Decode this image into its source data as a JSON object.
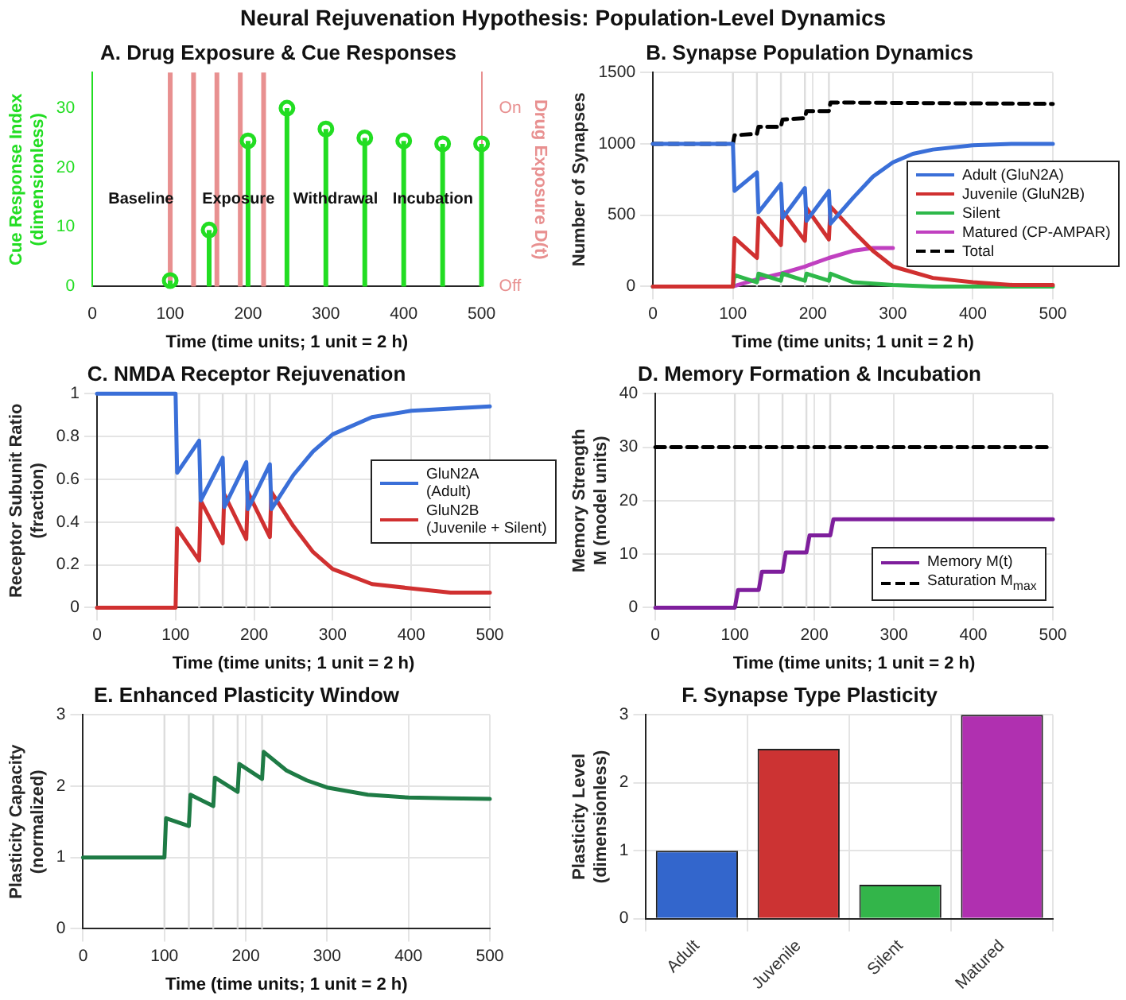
{
  "chart_data": [
    {
      "type": "lollipop",
      "title": "Neural Rejuvenation Hypothesis: Population-Level Dynamics",
      "subtitle": "A. Drug Exposure & Cue Responses",
      "xlabel": "Time (time units; 1 unit = 2 h)",
      "ylabel": "Cue Response Index\n(dimensionless)",
      "y2label": "Drug Exposure D(t)",
      "xlim": [
        0,
        500
      ],
      "xticks": [
        0,
        100,
        200,
        300,
        400,
        500
      ],
      "ylim": [
        0,
        36
      ],
      "yticks": [
        0,
        10,
        20,
        30
      ],
      "y2_categories": [
        "On",
        "Off"
      ],
      "marker": "circle",
      "annotations": [
        "Baseline",
        "Exposure",
        "Withdrawal",
        "Incubation"
      ],
      "ref_lines": [
        {
          "axis": "x",
          "value": 100,
          "color": "#e89090"
        },
        {
          "axis": "x",
          "value": 130,
          "color": "#e89090"
        },
        {
          "axis": "x",
          "value": 160,
          "color": "#e89090"
        },
        {
          "axis": "x",
          "value": 190,
          "color": "#e89090"
        },
        {
          "axis": "x",
          "value": 220,
          "color": "#e89090"
        }
      ],
      "series": [
        {
          "color": "#22dd22",
          "x": [
            100,
            150,
            200,
            250,
            300,
            350,
            400,
            450,
            500
          ],
          "values": [
            1,
            9.5,
            24.5,
            30,
            26.5,
            25,
            24.5,
            24,
            24
          ]
        }
      ]
    },
    {
      "type": "line",
      "title": "B. Synapse Population Dynamics",
      "xlabel": "Time (time units; 1 unit = 2 h)",
      "ylabel": "Number of Synapses",
      "xlim": [
        0,
        500
      ],
      "xticks": [
        0,
        100,
        200,
        300,
        400,
        500
      ],
      "ylim": [
        0,
        1500
      ],
      "yticks": [
        0,
        500,
        1000,
        1500
      ],
      "grid": true,
      "legend": "right",
      "ref_lines": [
        {
          "axis": "x",
          "value": 100,
          "color": "#dddddd"
        },
        {
          "axis": "x",
          "value": 130,
          "color": "#dddddd"
        },
        {
          "axis": "x",
          "value": 160,
          "color": "#dddddd"
        },
        {
          "axis": "x",
          "value": 190,
          "color": "#dddddd"
        },
        {
          "axis": "x",
          "value": 220,
          "color": "#dddddd"
        }
      ],
      "series": [
        {
          "name": "Adult (GluN2A)",
          "color": "#3a6fd8",
          "x": [
            0,
            100,
            102,
            130,
            132,
            160,
            162,
            190,
            192,
            220,
            222,
            250,
            275,
            300,
            325,
            350,
            400,
            450,
            500
          ],
          "values": [
            1000,
            1000,
            670,
            800,
            520,
            720,
            480,
            690,
            460,
            670,
            440,
            620,
            770,
            870,
            930,
            960,
            990,
            1000,
            1000
          ]
        },
        {
          "name": "Juvenile (GluN2B)",
          "color": "#d03030",
          "x": [
            0,
            100,
            102,
            130,
            132,
            160,
            162,
            190,
            192,
            220,
            222,
            250,
            275,
            300,
            350,
            400,
            450,
            500
          ],
          "values": [
            0,
            0,
            340,
            200,
            480,
            290,
            530,
            320,
            550,
            330,
            560,
            390,
            250,
            140,
            60,
            30,
            10,
            10
          ]
        },
        {
          "name": "Silent",
          "color": "#2eb84a",
          "x": [
            0,
            100,
            102,
            130,
            132,
            160,
            162,
            190,
            192,
            220,
            222,
            250,
            300,
            350,
            500
          ],
          "values": [
            0,
            0,
            80,
            30,
            90,
            40,
            90,
            40,
            90,
            40,
            90,
            30,
            10,
            0,
            0
          ]
        },
        {
          "name": "Matured (CP-AMPAR)",
          "color": "#c040c0",
          "x": [
            0,
            100,
            130,
            160,
            190,
            220,
            250,
            275,
            300
          ],
          "values": [
            0,
            0,
            50,
            90,
            140,
            200,
            250,
            270,
            270
          ]
        },
        {
          "name": "Total",
          "color": "#000000",
          "line_style": "dashed",
          "x": [
            0,
            100,
            102,
            130,
            132,
            160,
            162,
            190,
            192,
            220,
            222,
            500
          ],
          "values": [
            1000,
            1000,
            1060,
            1070,
            1120,
            1120,
            1170,
            1180,
            1230,
            1230,
            1290,
            1280
          ]
        }
      ]
    },
    {
      "type": "line",
      "title": "C. NMDA Receptor Rejuvenation",
      "xlabel": "Time (time units; 1 unit = 2 h)",
      "ylabel": "Receptor Subunit Ratio\n(fraction)",
      "xlim": [
        0,
        500
      ],
      "xticks": [
        0,
        100,
        200,
        300,
        400,
        500
      ],
      "ylim": [
        0,
        1
      ],
      "yticks": [
        0,
        0.2,
        0.4,
        0.6,
        0.8,
        1
      ],
      "grid": true,
      "legend": "right",
      "ref_lines": [
        {
          "axis": "x",
          "value": 100,
          "color": "#dddddd"
        },
        {
          "axis": "x",
          "value": 130,
          "color": "#dddddd"
        },
        {
          "axis": "x",
          "value": 160,
          "color": "#dddddd"
        },
        {
          "axis": "x",
          "value": 190,
          "color": "#dddddd"
        },
        {
          "axis": "x",
          "value": 220,
          "color": "#dddddd"
        }
      ],
      "series": [
        {
          "name": "GluN2A\n(Adult)",
          "color": "#3a6fd8",
          "x": [
            0,
            100,
            102,
            130,
            132,
            160,
            162,
            190,
            192,
            220,
            222,
            250,
            275,
            300,
            350,
            400,
            450,
            500
          ],
          "values": [
            1,
            1,
            0.63,
            0.78,
            0.5,
            0.7,
            0.47,
            0.68,
            0.46,
            0.67,
            0.46,
            0.62,
            0.73,
            0.81,
            0.89,
            0.92,
            0.93,
            0.94
          ]
        },
        {
          "name": "GluN2B\n(Juvenile + Silent)",
          "color": "#d03030",
          "x": [
            0,
            100,
            102,
            130,
            132,
            160,
            162,
            190,
            192,
            220,
            222,
            250,
            275,
            300,
            350,
            400,
            450,
            500
          ],
          "values": [
            0,
            0,
            0.37,
            0.22,
            0.5,
            0.3,
            0.53,
            0.32,
            0.54,
            0.33,
            0.54,
            0.38,
            0.26,
            0.18,
            0.11,
            0.09,
            0.07,
            0.07
          ]
        }
      ]
    },
    {
      "type": "line",
      "title": "D. Memory Formation & Incubation",
      "xlabel": "Time (time units; 1 unit = 2 h)",
      "ylabel": "Memory Strength\nM (model units)",
      "xlim": [
        0,
        500
      ],
      "xticks": [
        0,
        100,
        200,
        300,
        400,
        500
      ],
      "ylim": [
        0,
        40
      ],
      "yticks": [
        0,
        10,
        20,
        30,
        40
      ],
      "grid": true,
      "legend": "bottom right",
      "ref_lines": [
        {
          "axis": "x",
          "value": 100,
          "color": "#dddddd"
        },
        {
          "axis": "x",
          "value": 130,
          "color": "#dddddd"
        },
        {
          "axis": "x",
          "value": 160,
          "color": "#dddddd"
        },
        {
          "axis": "x",
          "value": 190,
          "color": "#dddddd"
        },
        {
          "axis": "x",
          "value": 220,
          "color": "#dddddd"
        }
      ],
      "series": [
        {
          "name": "Memory M(t)",
          "color": "#7e1e9c",
          "x": [
            0,
            100,
            104,
            130,
            134,
            160,
            164,
            190,
            194,
            220,
            224,
            500
          ],
          "values": [
            0,
            0,
            3.3,
            3.3,
            6.7,
            6.7,
            10.3,
            10.3,
            13.5,
            13.5,
            16.5,
            16.5
          ]
        },
        {
          "name": "Saturation M$_{max}$",
          "color": "#000000",
          "line_style": "dashed",
          "x": [
            0,
            500
          ],
          "values": [
            30,
            30
          ]
        }
      ]
    },
    {
      "type": "line",
      "title": "E. Enhanced Plasticity Window",
      "xlabel": "Time (time units; 1 unit = 2 h)",
      "ylabel": "Plasticity Capacity\n(normalized)",
      "xlim": [
        0,
        500
      ],
      "xticks": [
        0,
        100,
        200,
        300,
        400,
        500
      ],
      "ylim": [
        0,
        3
      ],
      "yticks": [
        0,
        1,
        2,
        3
      ],
      "grid": true,
      "ref_lines": [
        {
          "axis": "x",
          "value": 100,
          "color": "#dddddd"
        },
        {
          "axis": "x",
          "value": 130,
          "color": "#dddddd"
        },
        {
          "axis": "x",
          "value": 160,
          "color": "#dddddd"
        },
        {
          "axis": "x",
          "value": 190,
          "color": "#dddddd"
        },
        {
          "axis": "x",
          "value": 220,
          "color": "#dddddd"
        }
      ],
      "series": [
        {
          "color": "#1e7b45",
          "x": [
            0,
            100,
            102,
            130,
            132,
            160,
            162,
            190,
            192,
            220,
            222,
            250,
            275,
            300,
            350,
            400,
            450,
            500
          ],
          "values": [
            1,
            1,
            1.55,
            1.44,
            1.88,
            1.72,
            2.12,
            1.92,
            2.31,
            2.1,
            2.48,
            2.22,
            2.08,
            1.98,
            1.88,
            1.84,
            1.83,
            1.82
          ]
        }
      ]
    },
    {
      "type": "bar",
      "title": "F. Synapse Type Plasticity",
      "ylabel": "Plasticity Level\n(dimensionless)",
      "categories": [
        "Adult",
        "Juvenile",
        "Silent",
        "Matured"
      ],
      "values": [
        1,
        2.5,
        0.5,
        3
      ],
      "colors": [
        "#3366cc",
        "#cc3333",
        "#33b54a",
        "#b030b0"
      ],
      "ylim": [
        0,
        3
      ],
      "yticks": [
        0,
        1,
        2,
        3
      ],
      "grid": true
    }
  ]
}
